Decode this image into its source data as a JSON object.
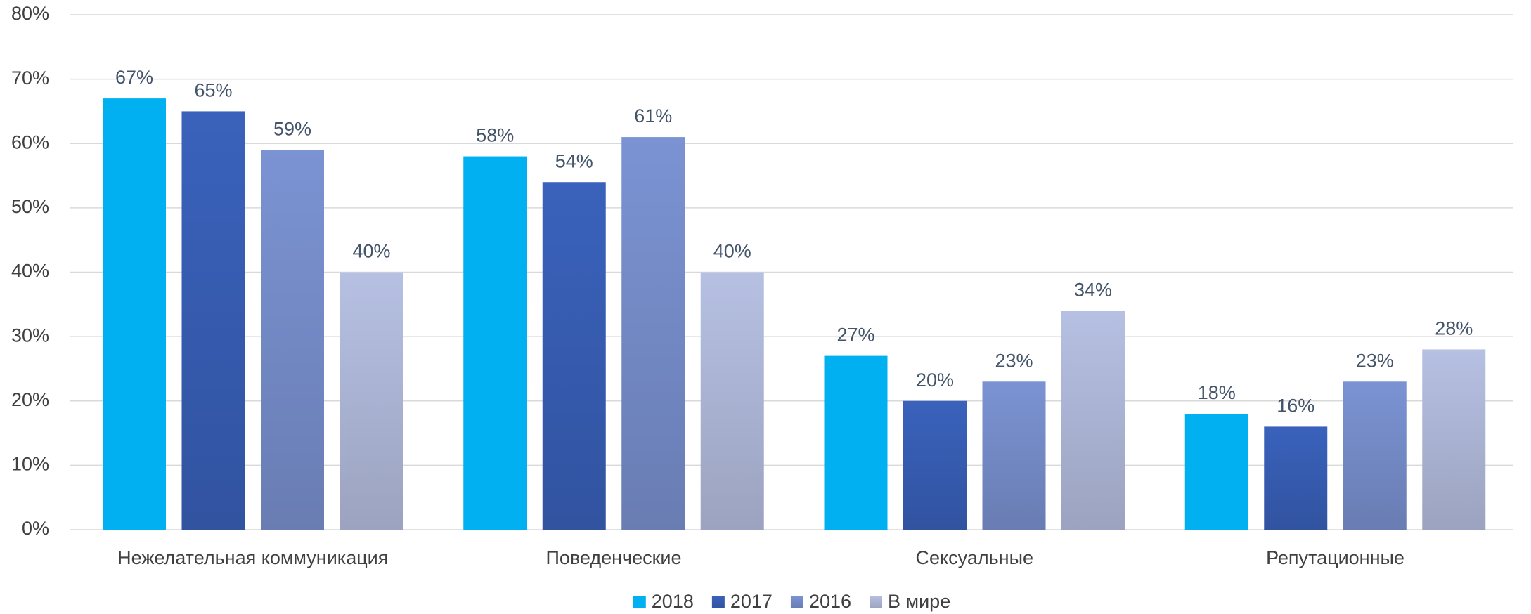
{
  "chart_data": {
    "type": "bar",
    "categories": [
      "Нежелательная коммуникация",
      "Поведенческие",
      "Сексуальные",
      "Репутационные"
    ],
    "series": [
      {
        "name": "2018",
        "color": "#00b0f0",
        "values": [
          67,
          58,
          27,
          18
        ],
        "value_labels": [
          "67%",
          "58%",
          "27%",
          "18%"
        ]
      },
      {
        "name": "2017",
        "color": "#3a62bc",
        "values": [
          65,
          54,
          20,
          16
        ],
        "value_labels": [
          "65%",
          "54%",
          "20%",
          "16%"
        ]
      },
      {
        "name": "2016",
        "color": "#7b93d3",
        "values": [
          59,
          61,
          23,
          23
        ],
        "value_labels": [
          "59%",
          "61%",
          "23%",
          "23%"
        ]
      },
      {
        "name": "В мире",
        "color": "#b6c0e2",
        "values": [
          40,
          40,
          34,
          28
        ],
        "value_labels": [
          "40%",
          "40%",
          "34%",
          "28%"
        ]
      }
    ],
    "ylim": [
      0,
      80
    ],
    "yticks": [
      {
        "value": 0,
        "label": "0%"
      },
      {
        "value": 10,
        "label": "10%"
      },
      {
        "value": 20,
        "label": "20%"
      },
      {
        "value": 30,
        "label": "30%"
      },
      {
        "value": 40,
        "label": "40%"
      },
      {
        "value": 50,
        "label": "50%"
      },
      {
        "value": 60,
        "label": "60%"
      },
      {
        "value": 70,
        "label": "70%"
      },
      {
        "value": 80,
        "label": "80%"
      }
    ],
    "grid": true,
    "legend": "bottom"
  }
}
